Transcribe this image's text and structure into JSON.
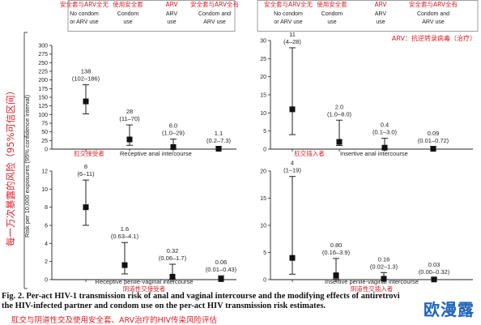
{
  "figure": {
    "caption_label": "Fig. 2.",
    "caption_text": "Per-act HIV-1 transmission risk of anal and vaginal intercourse and the modifying effects of antiretrovi",
    "caption_line2": "the HIV-infected partner and condom use on the per-act HIV transmission risk estimates.",
    "caption_zh": "肛交与阴道性交及使用安全套、ARV治疗的HIV传染风险评估",
    "watermark": "欧漫露",
    "y_axis_title_zh": "每一万次暴露的风险（95%可信区间）",
    "y_axis_title_en": "Risk per 10,000 exposures (95% confidence interval)",
    "arv_note_zh": "ARV：抗逆转录病毒（治疗）"
  },
  "header_left": {
    "zh": [
      "安全套与ARV全无",
      "使用安全套",
      "ARV",
      "安全套与ARV全有"
    ],
    "en": [
      [
        "No condom",
        "or ARV use"
      ],
      [
        "Condom",
        "use"
      ],
      [
        "ARV",
        "use"
      ],
      [
        "Condom and",
        "ARV use"
      ]
    ]
  },
  "header_right": {
    "zh": [
      "安全套与ARV全无",
      "使用安全套",
      "ARV",
      "安全套与ARV全有"
    ],
    "en": [
      [
        "No condom",
        "or ARV use"
      ],
      [
        "Condom",
        "use"
      ],
      [
        "ARV",
        "use"
      ],
      [
        "Condom and",
        "ARV use"
      ]
    ]
  },
  "chart_data": [
    {
      "type": "scatter",
      "panel": "top-left",
      "xlabel": "Receptive anal intercourse",
      "xlabel_zh": "肛交接受者",
      "ylim": [
        0,
        300
      ],
      "yticks": [
        0,
        25,
        50,
        75,
        100,
        125,
        150,
        175,
        200,
        225,
        250,
        275,
        300
      ],
      "points": [
        {
          "value": 138,
          "low": 102,
          "high": 186,
          "value_label": "138",
          "ci_label": "(102–186)"
        },
        {
          "value": 28,
          "low": 11,
          "high": 70,
          "value_label": "28",
          "ci_label": "(11–70)"
        },
        {
          "value": 6.0,
          "low": 1.0,
          "high": 29,
          "value_label": "6.0",
          "ci_label": "(1.0–29)"
        },
        {
          "value": 1.1,
          "low": 0.2,
          "high": 7.3,
          "value_label": "1.1",
          "ci_label": "(0.2–7.3)"
        }
      ]
    },
    {
      "type": "scatter",
      "panel": "top-right",
      "xlabel": "Insertive anal intercourse",
      "xlabel_zh": "肛交插入者",
      "ylim": [
        0,
        30
      ],
      "yticks": [
        0,
        5,
        10,
        15,
        20,
        25,
        30
      ],
      "points": [
        {
          "value": 11,
          "low": 4,
          "high": 28,
          "value_label": "11",
          "ci_label": "(4–28)"
        },
        {
          "value": 2.0,
          "low": 1.0,
          "high": 8.0,
          "value_label": "2.0",
          "ci_label": "(1.0–8.0)"
        },
        {
          "value": 0.4,
          "low": 0.1,
          "high": 3.0,
          "value_label": "0.4",
          "ci_label": "(0.1–3.0)"
        },
        {
          "value": 0.09,
          "low": 0.01,
          "high": 0.72,
          "value_label": "0.09",
          "ci_label": "(0.01–0.72)"
        }
      ]
    },
    {
      "type": "scatter",
      "panel": "bottom-left",
      "xlabel": "Receptive penile-vaginal intercourse",
      "xlabel_zh": "阴道性交接受者",
      "ylim": [
        0,
        12
      ],
      "yticks": [
        0,
        2,
        4,
        6,
        8,
        10,
        12
      ],
      "points": [
        {
          "value": 8,
          "low": 6,
          "high": 11,
          "value_label": "8",
          "ci_label": "(6–11)"
        },
        {
          "value": 1.6,
          "low": 0.63,
          "high": 4.1,
          "value_label": "1.6",
          "ci_label": "(0.63–4.1)"
        },
        {
          "value": 0.32,
          "low": 0.06,
          "high": 1.7,
          "value_label": "0.32",
          "ci_label": "(0.06–1.7)"
        },
        {
          "value": 0.06,
          "low": 0.01,
          "high": 0.43,
          "value_label": "0.06",
          "ci_label": "(0.01–0.43)"
        }
      ]
    },
    {
      "type": "scatter",
      "panel": "bottom-right",
      "xlabel": "Insertive penile-vaginal intercourse",
      "xlabel_zh": "阴道性交插入者",
      "ylim": [
        0,
        20
      ],
      "yticks": [
        0,
        5,
        10,
        15,
        20
      ],
      "points": [
        {
          "value": 4,
          "low": 1,
          "high": 19,
          "value_label": "4",
          "ci_label": "(1–19)"
        },
        {
          "value": 0.8,
          "low": 0.16,
          "high": 3.9,
          "value_label": "0.80",
          "ci_label": "(0.16–3.9)"
        },
        {
          "value": 0.16,
          "low": 0.02,
          "high": 1.3,
          "value_label": "0.16",
          "ci_label": "(0.02–1.3)"
        },
        {
          "value": 0.03,
          "low": 0.0,
          "high": 0.32,
          "value_label": "0.03",
          "ci_label": "(0.00–0.32)"
        }
      ]
    }
  ]
}
